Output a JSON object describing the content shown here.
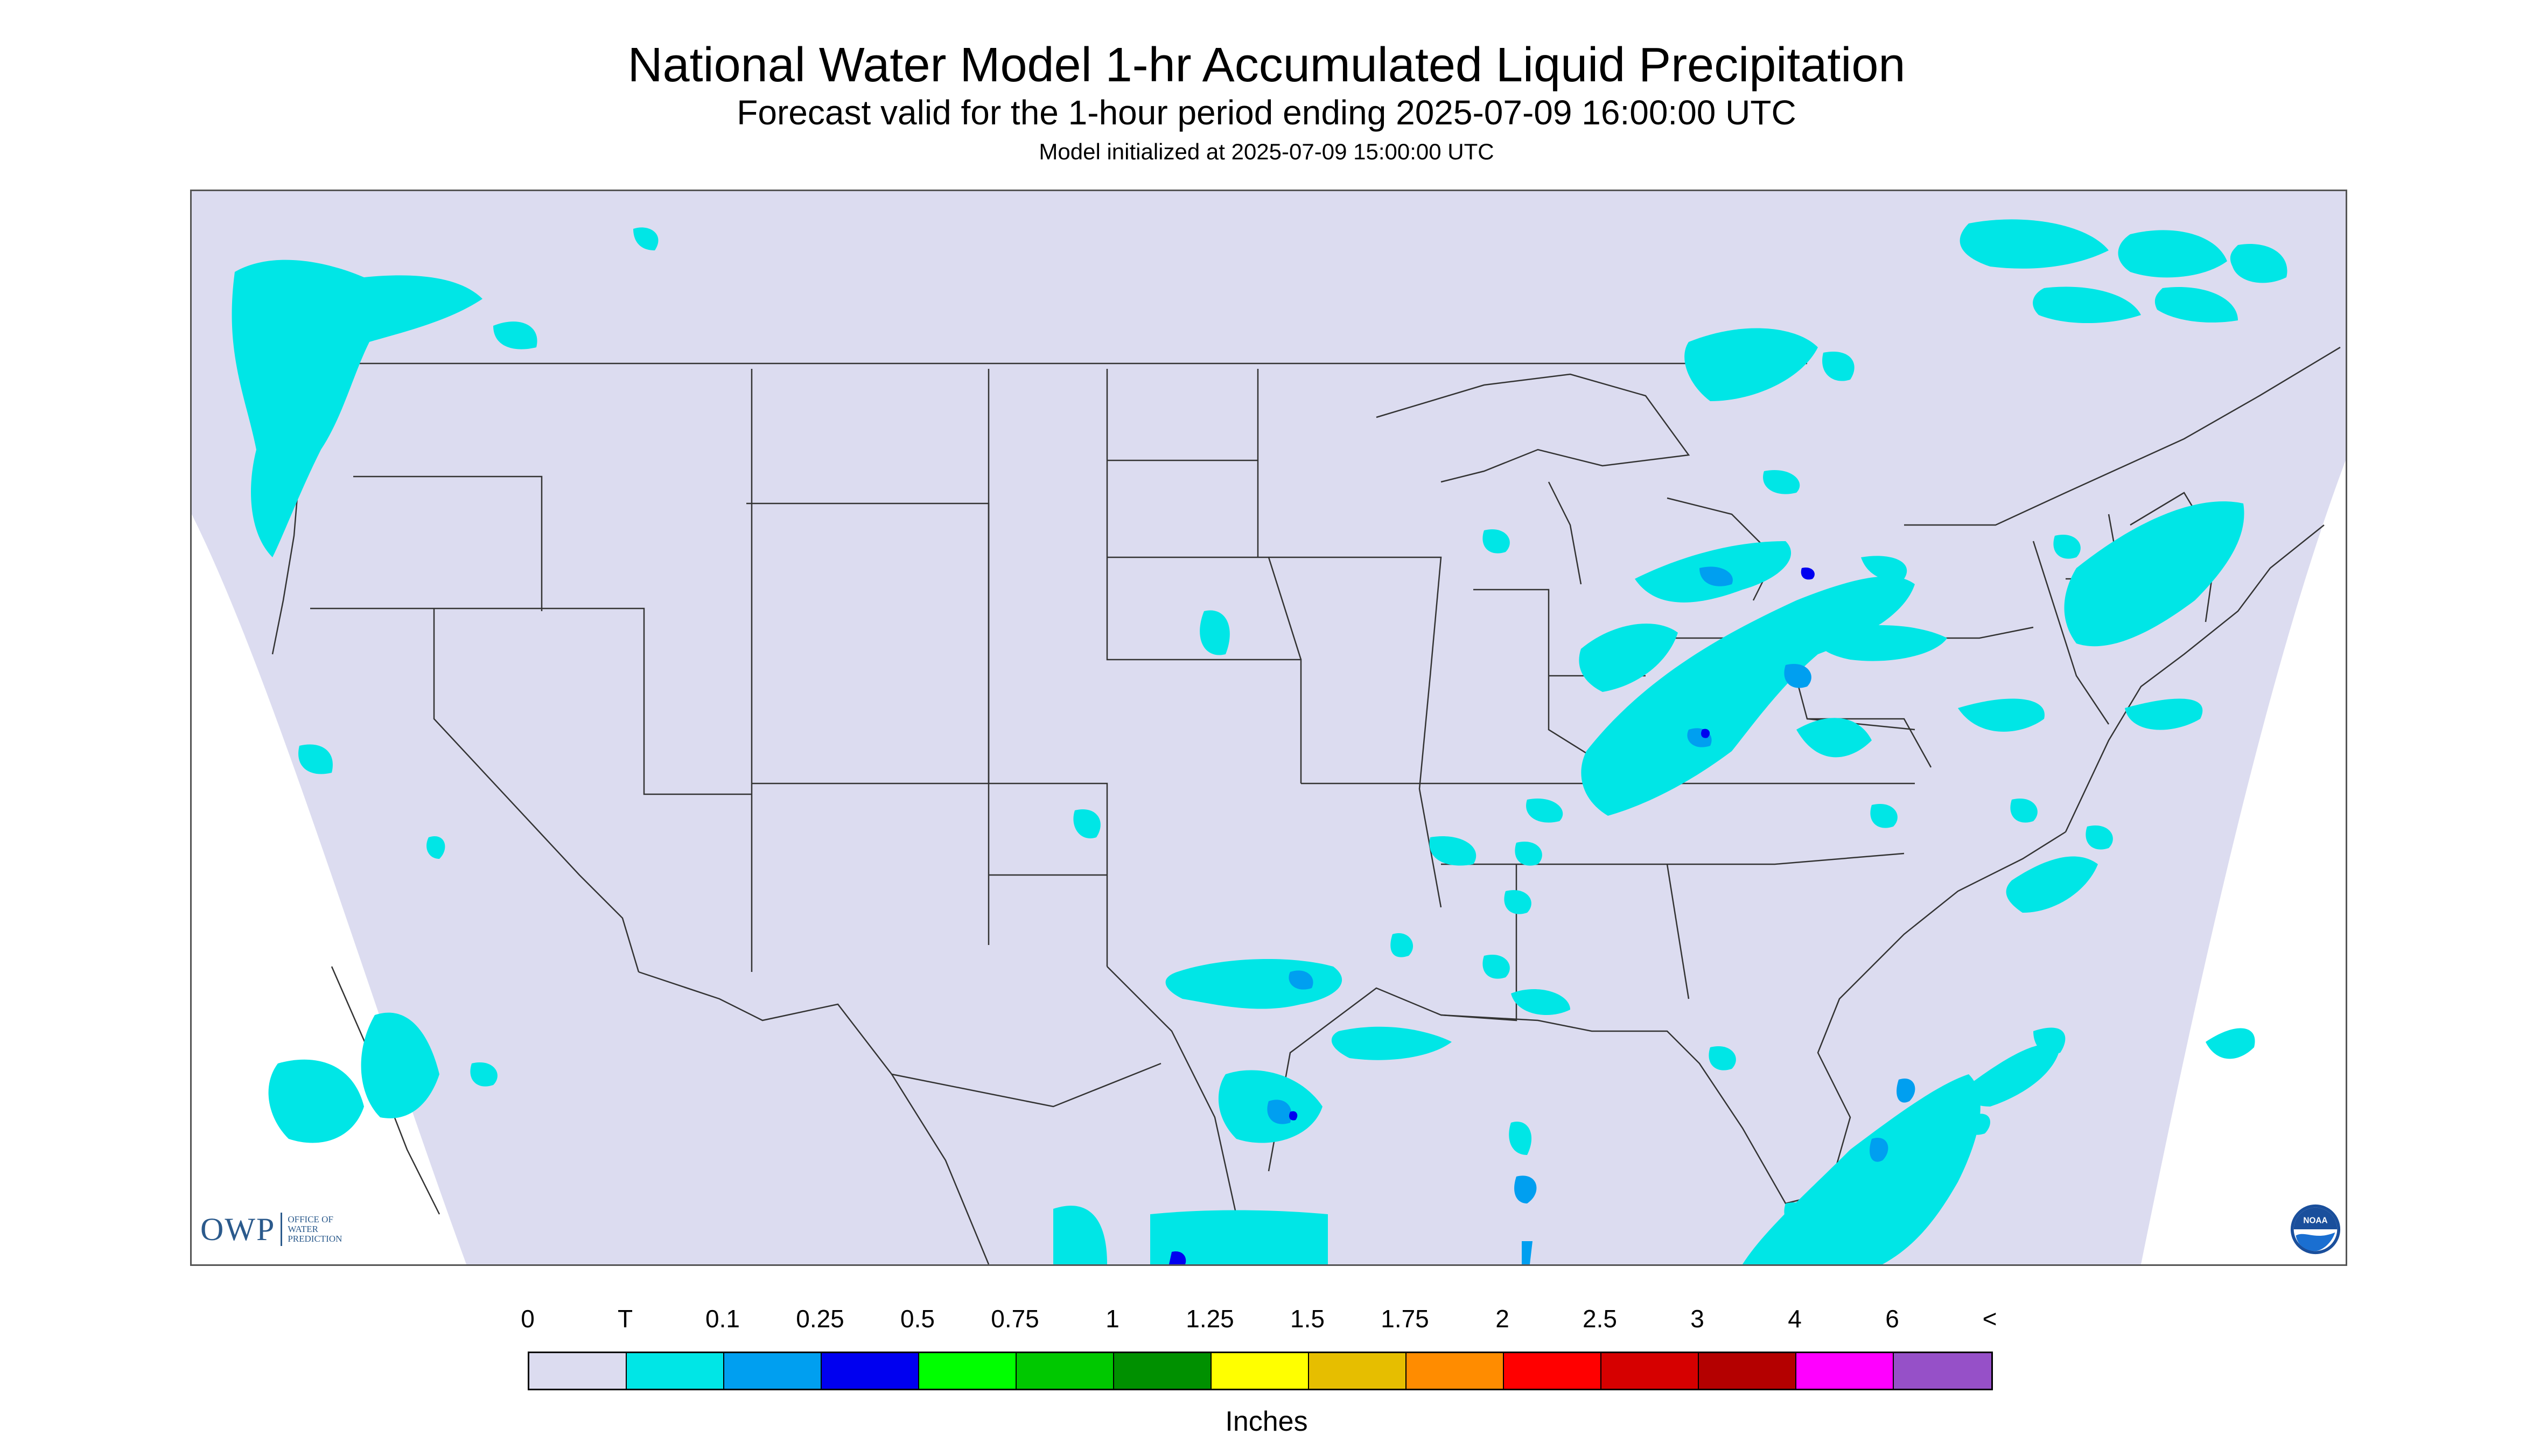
{
  "title": "National Water Model 1-hr Accumulated Liquid Precipitation",
  "subtitle": "Forecast valid for the 1-hour period ending 2025-07-09 16:00:00 UTC",
  "init_line": "Model initialized at 2025-07-09 15:00:00 UTC",
  "logos": {
    "owp_mark": "OWP",
    "owp_text": [
      "OFFICE OF",
      "WATER",
      "PREDICTION"
    ],
    "noaa_text": "NOAA"
  },
  "legend": {
    "labels": [
      "0",
      "T",
      "0.1",
      "0.25",
      "0.5",
      "0.75",
      "1",
      "1.25",
      "1.5",
      "1.75",
      "2",
      "2.5",
      "3",
      "4",
      "6",
      "<"
    ],
    "colors": [
      "#dcdcf0",
      "#00e6e6",
      "#009ff0",
      "#0000f0",
      "#00ff00",
      "#00c800",
      "#009000",
      "#ffff00",
      "#e6be00",
      "#ff8c00",
      "#ff0000",
      "#d60000",
      "#b40000",
      "#ff00ff",
      "#9650c8"
    ],
    "units": "Inches"
  },
  "colors": {
    "domain_fill": "#dcdcf0",
    "trace": "#00e6e6",
    "light": "#009ff0",
    "heavy": "#0000f0",
    "state_lines": "#333333"
  }
}
